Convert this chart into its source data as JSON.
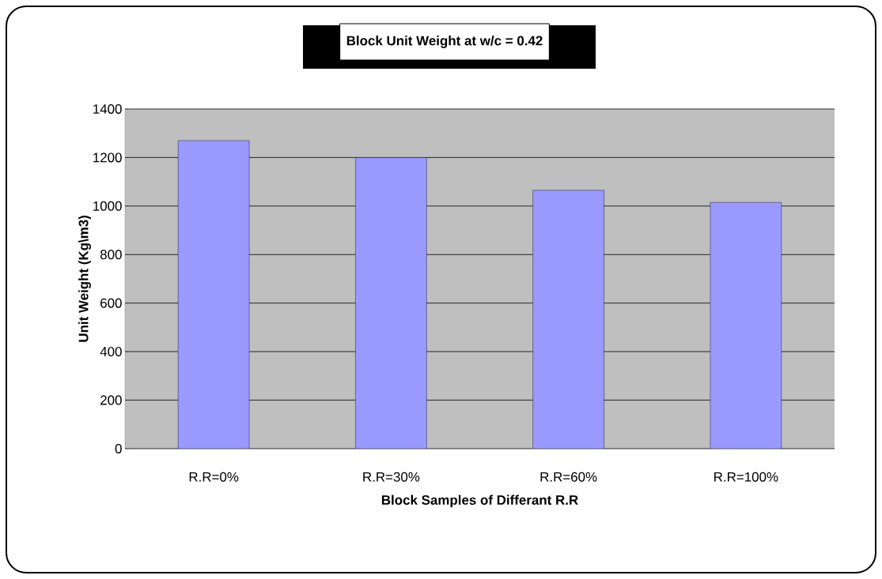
{
  "chart_data": {
    "type": "bar",
    "title": "Block Unit Weight at w/c = 0.42",
    "xlabel": "Block Samples of Differant R.R",
    "ylabel": "Unit Weight (Kg\\m3)",
    "categories": [
      "R.R=0%",
      "R.R=30%",
      "R.R=60%",
      "R.R=100%"
    ],
    "values": [
      1270,
      1200,
      1065,
      1015
    ],
    "color": "#9999ff",
    "ylim": [
      0,
      1400
    ],
    "yticks": [
      0,
      200,
      400,
      600,
      800,
      1000,
      1200,
      1400
    ],
    "grid": "y"
  }
}
